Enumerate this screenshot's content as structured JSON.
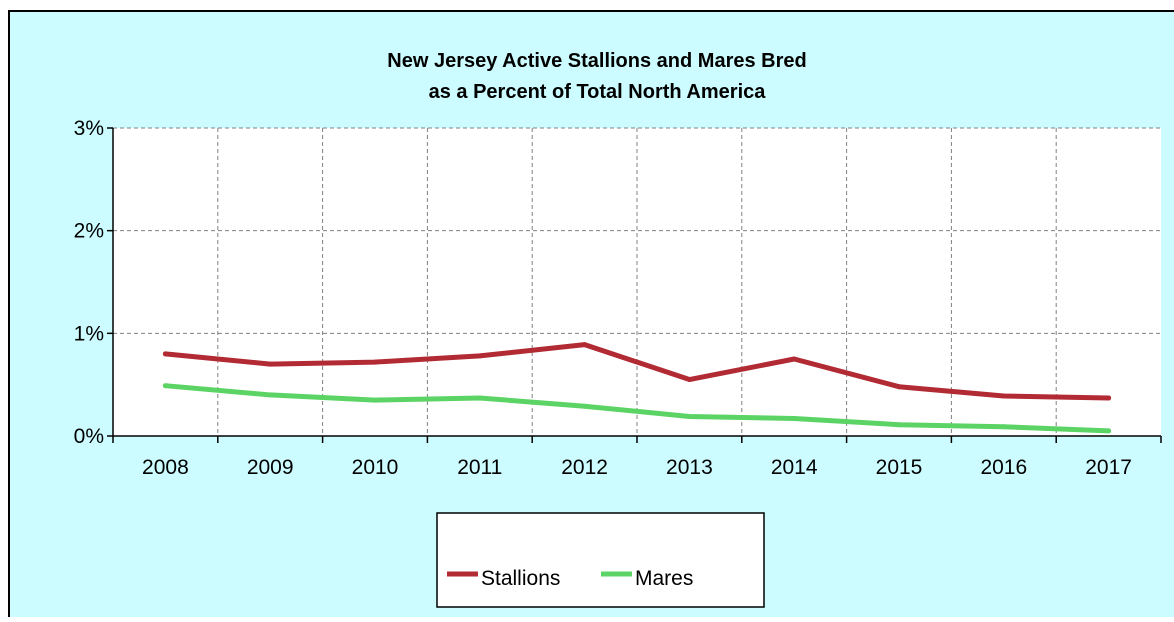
{
  "chart_data": {
    "type": "line",
    "title_lines": [
      "New Jersey Active Stallions and Mares Bred",
      "as a Percent of Total North America"
    ],
    "xlabel": "",
    "ylabel": "",
    "categories": [
      "2008",
      "2009",
      "2010",
      "2011",
      "2012",
      "2013",
      "2014",
      "2015",
      "2016",
      "2017"
    ],
    "ylim": [
      0,
      3
    ],
    "yticks": [
      0,
      1,
      2,
      3
    ],
    "ytick_labels": [
      "0%",
      "1%",
      "2%",
      "3%"
    ],
    "grid": true,
    "legend_position": "bottom",
    "series": [
      {
        "name": "Stallions",
        "color": "#b22a33",
        "values": [
          0.8,
          0.7,
          0.72,
          0.78,
          0.89,
          0.55,
          0.75,
          0.48,
          0.39,
          0.37
        ]
      },
      {
        "name": "Mares",
        "color": "#5cd465",
        "values": [
          0.49,
          0.4,
          0.35,
          0.37,
          0.29,
          0.19,
          0.17,
          0.11,
          0.09,
          0.05
        ]
      }
    ]
  }
}
